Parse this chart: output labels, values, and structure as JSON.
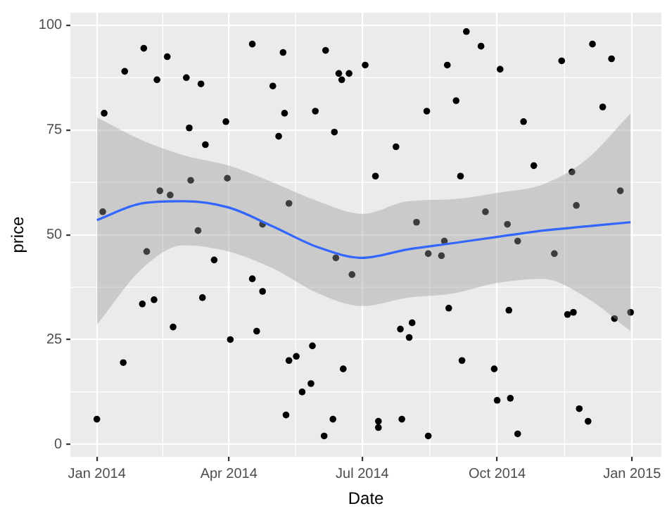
{
  "chart_data": {
    "type": "scatter",
    "xlabel": "Date",
    "ylabel": "price",
    "xlim": [
      "2013-12-14",
      "2015-01-21"
    ],
    "ylim": [
      -3,
      103
    ],
    "xticks": [
      {
        "value": "2014-01-01",
        "label": "Jan 2014"
      },
      {
        "value": "2014-04-01",
        "label": "Apr 2014"
      },
      {
        "value": "2014-07-01",
        "label": "Jul 2014"
      },
      {
        "value": "2014-10-01",
        "label": "Oct 2014"
      },
      {
        "value": "2015-01-01",
        "label": "Jan 2015"
      }
    ],
    "yticks": [
      0,
      25,
      50,
      75,
      100
    ],
    "grid": true,
    "marker": "circle",
    "series": [
      {
        "type": "scatter",
        "color": "#000000",
        "x": [
          "2014-01-06",
          "2014-01-05",
          "2014-01-20",
          "2014-02-02",
          "2014-02-11",
          "2014-02-18",
          "2014-03-03",
          "2014-03-13",
          "2014-03-05",
          "2014-03-16",
          "2014-03-30",
          "2014-02-13",
          "2014-02-20",
          "2014-03-06",
          "2014-03-31",
          "2014-03-11",
          "2014-01-01",
          "2014-01-19",
          "2014-02-01",
          "2014-02-04",
          "2014-02-09",
          "2014-02-22",
          "2014-03-14",
          "2014-03-22",
          "2014-04-02",
          "2014-04-17",
          "2014-05-08",
          "2014-06-06",
          "2014-05-01",
          "2014-06-15",
          "2014-06-17",
          "2014-06-22",
          "2014-07-03",
          "2014-05-09",
          "2014-05-30",
          "2014-05-05",
          "2014-06-12",
          "2014-08-14",
          "2014-07-24",
          "2014-07-10",
          "2014-05-12",
          "2014-04-24",
          "2014-08-07",
          "2014-04-17",
          "2014-04-24",
          "2014-04-20",
          "2014-05-28",
          "2014-05-12",
          "2014-05-17",
          "2014-05-27",
          "2014-05-21",
          "2014-05-10",
          "2014-06-11",
          "2014-06-05",
          "2014-06-18",
          "2014-06-13",
          "2014-06-24",
          "2014-07-12",
          "2014-07-12",
          "2014-07-28",
          "2014-08-15",
          "2014-07-27",
          "2014-08-04",
          "2014-08-02",
          "2014-08-15",
          "2014-08-24",
          "2014-09-10",
          "2014-09-20",
          "2014-08-28",
          "2014-10-03",
          "2014-09-03",
          "2014-10-19",
          "2014-11-14",
          "2014-12-05",
          "2014-12-18",
          "2014-12-12",
          "2014-09-06",
          "2014-10-26",
          "2014-11-21",
          "2014-12-24",
          "2014-11-24",
          "2014-09-23",
          "2014-10-08",
          "2014-08-26",
          "2014-10-15",
          "2014-11-09",
          "2014-08-29",
          "2014-10-09",
          "2014-11-18",
          "2014-11-22",
          "2014-12-20",
          "2014-12-31",
          "2014-09-07",
          "2014-09-29",
          "2014-10-01",
          "2014-10-10",
          "2014-10-15",
          "2014-11-26",
          "2014-12-02"
        ],
        "values": [
          79,
          55.5,
          89,
          94.5,
          87,
          92.5,
          87.5,
          86,
          75.5,
          71.5,
          77,
          60.5,
          59.5,
          63,
          63.5,
          51,
          6,
          19.5,
          33.5,
          46,
          34.5,
          28,
          35,
          44,
          25,
          95.5,
          93.5,
          94,
          85.5,
          88.5,
          87,
          88.5,
          90.5,
          79,
          79.5,
          73.5,
          74.5,
          79.5,
          71,
          64,
          57.5,
          52.5,
          53,
          39.5,
          36.5,
          27,
          23.5,
          20,
          21,
          14.5,
          12.5,
          7,
          6,
          2,
          18,
          44.5,
          40.5,
          5.5,
          4,
          6,
          2,
          27.5,
          29,
          25.5,
          45.5,
          45,
          98.5,
          95,
          90.5,
          89.5,
          82,
          77,
          91.5,
          95.5,
          92,
          80.5,
          64,
          66.5,
          65,
          60.5,
          57,
          55.5,
          52.5,
          48.5,
          48.5,
          45.5,
          32.5,
          32,
          31,
          31.5,
          30,
          31.5,
          20,
          18,
          10.5,
          11,
          2.5,
          8.5,
          5.5
        ]
      },
      {
        "type": "line",
        "color": "#3366ff",
        "marker": "none",
        "x": [
          "2014-01-01",
          "2014-02-01",
          "2014-03-01",
          "2014-04-01",
          "2014-05-01",
          "2014-06-01",
          "2014-07-01",
          "2014-08-01",
          "2014-09-01",
          "2014-10-01",
          "2014-11-01",
          "2014-12-01",
          "2014-12-31"
        ],
        "values": [
          53.5,
          57.5,
          58,
          56.5,
          52,
          47,
          44.5,
          46.5,
          48,
          49.5,
          51,
          52,
          53
        ],
        "lower": [
          28.5,
          42,
          47.5,
          46,
          42,
          36,
          33,
          35,
          36,
          38.5,
          39.5,
          35,
          27
        ],
        "upper": [
          78,
          72.5,
          69,
          66.5,
          62.5,
          58,
          55,
          58,
          58.5,
          60,
          62,
          68,
          79
        ]
      }
    ]
  }
}
